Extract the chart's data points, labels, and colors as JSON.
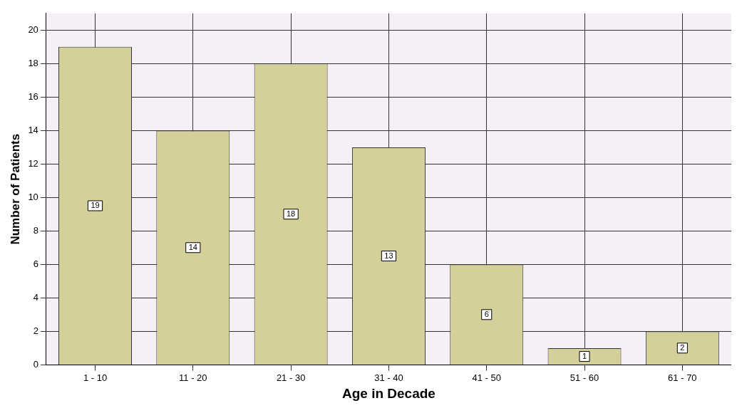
{
  "chart_data": {
    "type": "bar",
    "xlabel": "Age in Decade",
    "ylabel": "Number of Patients",
    "categories": [
      "1 - 10",
      "11 - 20",
      "21 - 30",
      "31 - 40",
      "41 - 50",
      "51 - 60",
      "61 - 70"
    ],
    "values": [
      19,
      14,
      18,
      13,
      6,
      1,
      2
    ],
    "color": "#d4d09a",
    "ylim": [
      0,
      21
    ],
    "yticks": [
      0,
      2,
      4,
      6,
      8,
      10,
      12,
      14,
      16,
      18,
      20
    ],
    "grid": true,
    "legend": false,
    "data_labels": true
  }
}
